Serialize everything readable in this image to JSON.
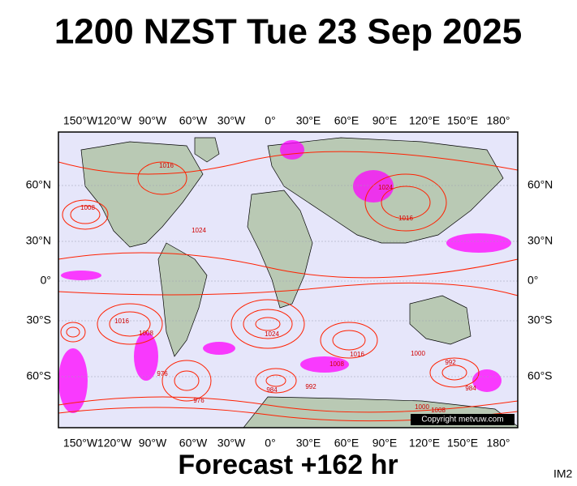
{
  "header": {
    "title": "1200 NZST Tue 23 Sep 2025"
  },
  "map": {
    "lon_labels": [
      "150°W",
      "120°W",
      "90°W",
      "60°W",
      "30°W",
      "0°",
      "30°E",
      "60°E",
      "90°E",
      "120°E",
      "150°E",
      "180°"
    ],
    "lat_labels": [
      "60°N",
      "30°N",
      "0°",
      "30°S",
      "60°S"
    ],
    "isobar_labels": [
      "1008",
      "1016",
      "1024",
      "1024",
      "1016",
      "1008",
      "1016",
      "1024",
      "1016",
      "1008",
      "1000",
      "992",
      "984",
      "992",
      "976",
      "976",
      "984",
      "1000",
      "1008"
    ],
    "copyright": "Copyright metvuw.com"
  },
  "footer": {
    "text": "Forecast +162 hr",
    "id": "IM2"
  }
}
